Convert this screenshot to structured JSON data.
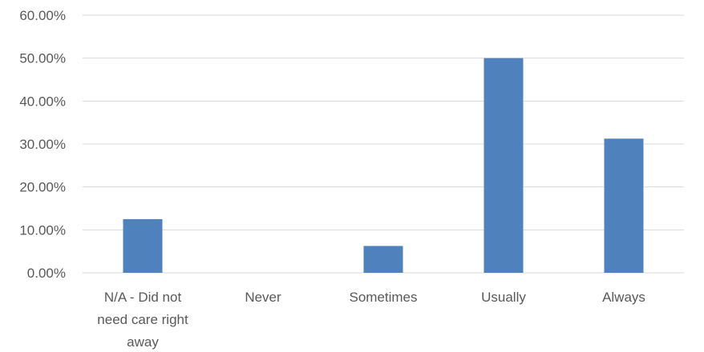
{
  "chart_data": {
    "type": "bar",
    "categories": [
      [
        "N/A - Did not",
        "need care right",
        "away"
      ],
      [
        "Never"
      ],
      [
        "Sometimes"
      ],
      [
        "Usually"
      ],
      [
        "Always"
      ]
    ],
    "values": [
      12.5,
      0,
      6.25,
      50,
      31.25
    ],
    "ylim": [
      0,
      60
    ],
    "yticks": [
      "0.00%",
      "10.00%",
      "20.00%",
      "30.00%",
      "40.00%",
      "50.00%",
      "60.00%"
    ],
    "grid": true,
    "legend": "none",
    "bar_color": "#4f81bd",
    "grid_color": "#d9d9d9",
    "label_color": "#595959"
  }
}
